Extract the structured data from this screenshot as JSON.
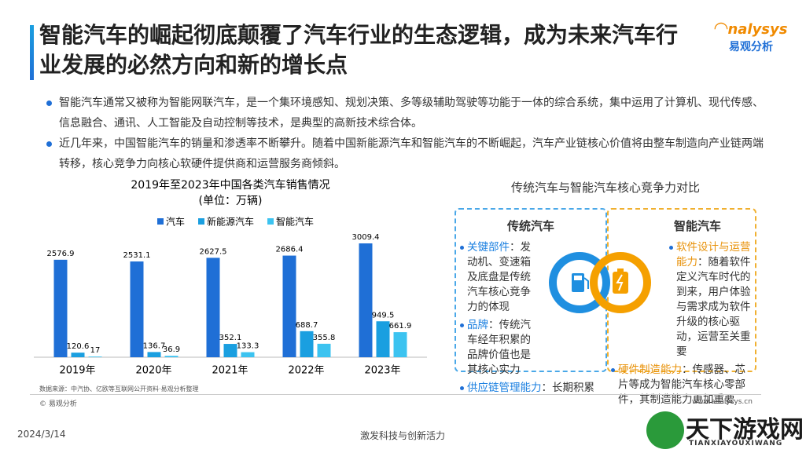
{
  "header": {
    "title": "智能汽车的崛起彻底颠覆了汽车行业的生态逻辑，成为未来汽车行业发展的必然方向和新的增长点",
    "logo_name": "nalysys",
    "logo_cn": "易观分析"
  },
  "bullets": [
    "智能汽车通常又被称为智能网联汽车，是一个集环境感知、规划决策、多等级辅助驾驶等功能于一体的综合系统，集中运用了计算机、现代传感、信息融合、通讯、人工智能及自动控制等技术，是典型的高新技术综合体。",
    "近几年来，中国智能汽车的销量和渗透率不断攀升。随着中国新能源汽车和智能汽车的不断崛起，汽车产业链核心价值将由整车制造向产业链两端转移，核心竞争力向核心软硬件提供商和运营服务商倾斜。"
  ],
  "chart_data": {
    "type": "bar",
    "title": "2019年至2023年中国各类汽车销售情况",
    "subtitle": "(单位：万辆)",
    "categories": [
      "2019年",
      "2020年",
      "2021年",
      "2022年",
      "2023年"
    ],
    "series": [
      {
        "name": "汽车",
        "color": "#1f6fd6",
        "values": [
          2576.9,
          2531.1,
          2627.5,
          2686.4,
          3009.4
        ]
      },
      {
        "name": "新能源汽车",
        "color": "#1a9fe0",
        "values": [
          120.6,
          136.7,
          352.1,
          688.7,
          949.5
        ]
      },
      {
        "name": "智能汽车",
        "color": "#3cc3f0",
        "values": [
          17,
          36.9,
          133.3,
          355.8,
          661.9
        ]
      }
    ],
    "source": "数据来源：中汽协、亿欧等互联网公开资料·易观分析整理"
  },
  "comparison": {
    "title": "传统汽车与智能汽车核心竞争力对比",
    "traditional": {
      "title": "传统汽车",
      "items": [
        {
          "key": "关键部件",
          "text": "：发动机、变速箱及底盘是传统汽车核心竞争力的体现"
        },
        {
          "key": "品牌",
          "text": "：传统汽车经年积累的品牌价值也是其核心实力"
        },
        {
          "key": "供应链管理能力",
          "text": "：长期积累"
        }
      ]
    },
    "smart": {
      "title": "智能汽车",
      "items": [
        {
          "key": "软件设计与运营能力",
          "text": "：随着软件定义汽车时代的到来，用户体验与需求成为软件升级的核心驱动，运营至关重要"
        },
        {
          "key": "硬件制造能力",
          "text": "：传感器、芯片等成为智能汽车核心零部件，其制造能力更加重要"
        }
      ]
    }
  },
  "footer": {
    "copyright": "© 易观分析",
    "website": "www.analysys.cn",
    "date": "2024/3/14",
    "slogan": "激发科技与创新活力"
  },
  "watermark": {
    "name": "天下游戏网",
    "pinyin": "TIANXIAYOUXIWANG"
  }
}
